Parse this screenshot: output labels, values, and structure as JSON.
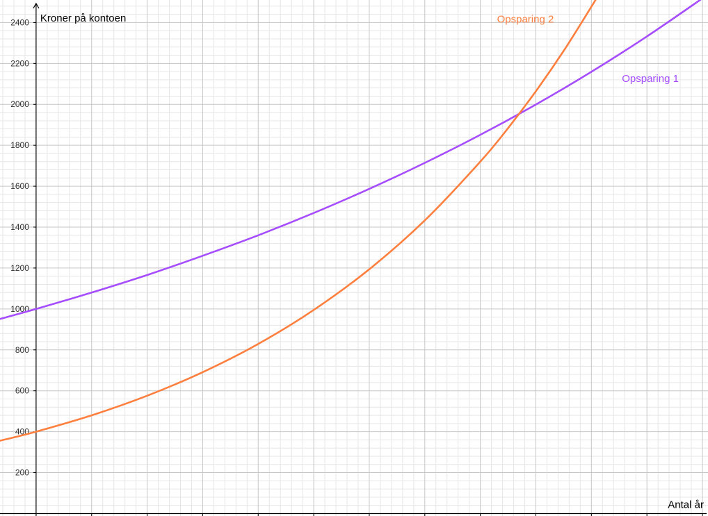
{
  "chart_data": {
    "type": "line",
    "xlabel": "Antal år",
    "ylabel": "Kroner på kontoen",
    "xlim": [
      -0.65,
      12.1
    ],
    "ylim": [
      -12,
      2510
    ],
    "x_ticks": [
      "0",
      "1",
      "2",
      "3",
      "4",
      "5",
      "6",
      "7",
      "8",
      "9",
      "10",
      "11",
      "12"
    ],
    "y_ticks": [
      "200",
      "400",
      "600",
      "800",
      "1000",
      "1200",
      "1400",
      "1600",
      "1800",
      "2000",
      "2200",
      "2400"
    ],
    "grid": true,
    "series": [
      {
        "name": "Opsparing 1",
        "color": "#a64dff",
        "x": [
          -0.65,
          0,
          1,
          2,
          3,
          4,
          5,
          6,
          7,
          8,
          9,
          10,
          11,
          12,
          12.1
        ],
        "values": [
          951,
          1000,
          1080,
          1166,
          1260,
          1360,
          1469,
          1587,
          1714,
          1851,
          1999,
          2159,
          2332,
          2518,
          2537
        ]
      },
      {
        "name": "Opsparing 2",
        "color": "#ff7f3f",
        "x": [
          -0.65,
          0,
          1,
          2,
          3,
          4,
          5,
          6,
          7,
          8,
          8.5,
          9,
          9.5,
          10,
          10.14
        ],
        "values": [
          356,
          400,
          480,
          576,
          691,
          829,
          995,
          1194,
          1433,
          1720,
          1884,
          2064,
          2261,
          2477,
          2540
        ]
      }
    ]
  }
}
